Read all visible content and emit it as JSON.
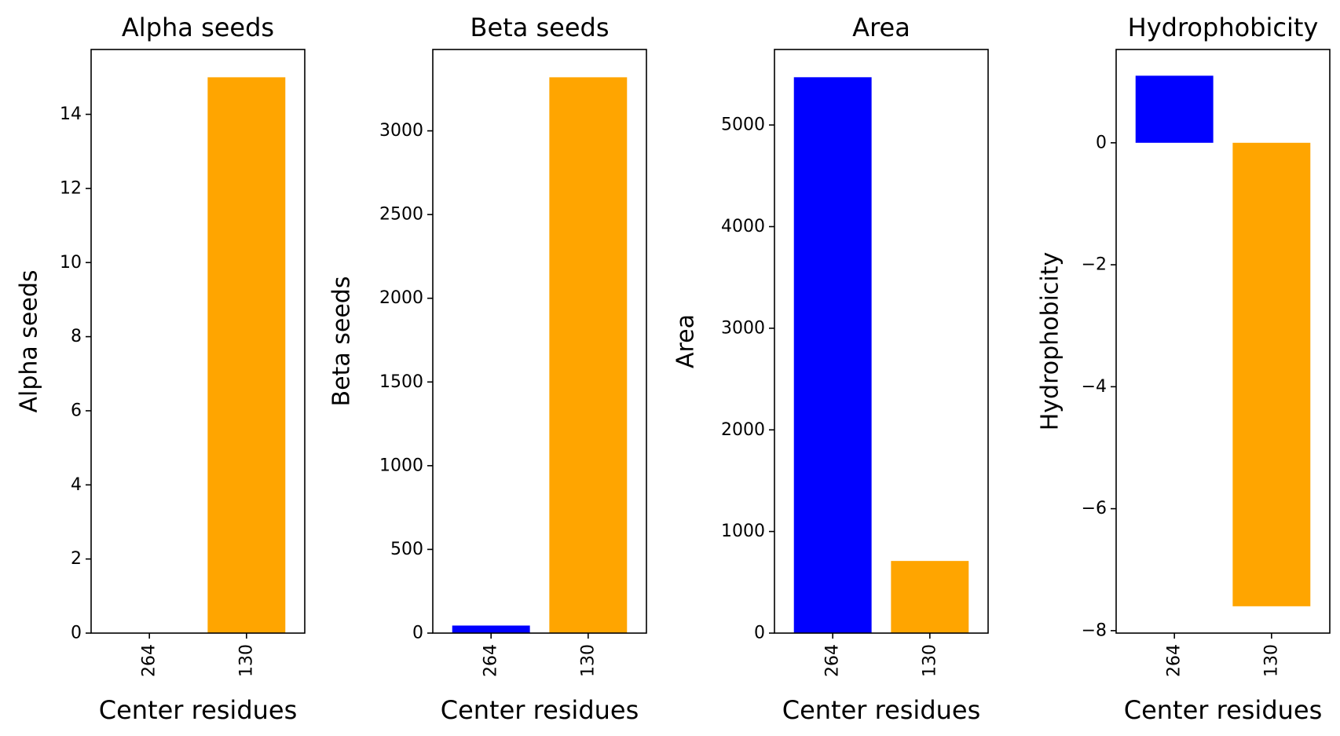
{
  "chart_data": [
    {
      "type": "bar",
      "title": "Alpha seeds",
      "xlabel": "Center residues",
      "ylabel": "Alpha seeds",
      "categories": [
        "264",
        "130"
      ],
      "values": [
        0,
        15
      ],
      "colors": [
        "#0000ff",
        "#ffa500"
      ],
      "ylim": [
        0,
        15.75
      ],
      "yticks": [
        0,
        2,
        4,
        6,
        8,
        10,
        12,
        14
      ],
      "ytick_labels": [
        "0",
        "2",
        "4",
        "6",
        "8",
        "10",
        "12",
        "14"
      ]
    },
    {
      "type": "bar",
      "title": "Beta seeds",
      "xlabel": "Center residues",
      "ylabel": "Beta seeds",
      "categories": [
        "264",
        "130"
      ],
      "values": [
        45,
        3320
      ],
      "colors": [
        "#0000ff",
        "#ffa500"
      ],
      "ylim": [
        0,
        3486
      ],
      "yticks": [
        0,
        500,
        1000,
        1500,
        2000,
        2500,
        3000
      ],
      "ytick_labels": [
        "0",
        "500",
        "1000",
        "1500",
        "2000",
        "2500",
        "3000"
      ]
    },
    {
      "type": "bar",
      "title": "Area",
      "xlabel": "Center residues",
      "ylabel": "Area",
      "categories": [
        "264",
        "130"
      ],
      "values": [
        5470,
        710
      ],
      "colors": [
        "#0000ff",
        "#ffa500"
      ],
      "ylim": [
        0,
        5743
      ],
      "yticks": [
        0,
        1000,
        2000,
        3000,
        4000,
        5000
      ],
      "ytick_labels": [
        "0",
        "1000",
        "2000",
        "3000",
        "4000",
        "5000"
      ]
    },
    {
      "type": "bar",
      "title": "Hydrophobicity",
      "xlabel": "Center residues",
      "ylabel": "Hydrophobicity",
      "categories": [
        "264",
        "130"
      ],
      "values": [
        1.1,
        -7.6
      ],
      "colors": [
        "#0000ff",
        "#ffa500"
      ],
      "ylim": [
        -8.04,
        1.53
      ],
      "yticks": [
        -8,
        -6,
        -4,
        -2,
        0
      ],
      "ytick_labels": [
        "−8",
        "−6",
        "−4",
        "−2",
        "0"
      ]
    }
  ]
}
